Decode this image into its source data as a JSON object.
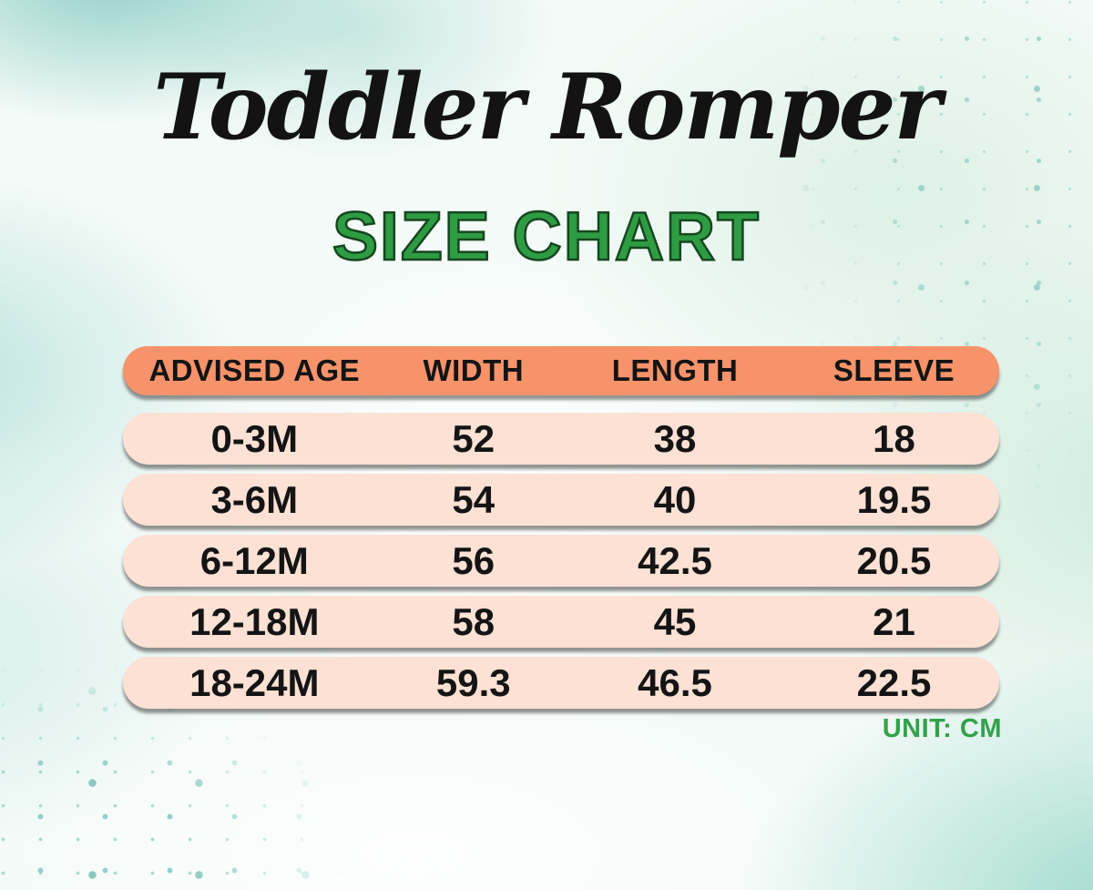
{
  "chart_data": {
    "type": "table",
    "title": "Toddler Romper",
    "subtitle": "SIZE CHART",
    "unit_label": "UNIT: CM",
    "columns": [
      "ADVISED AGE",
      "WIDTH",
      "LENGTH",
      "SLEEVE"
    ],
    "rows": [
      [
        "0-3M",
        "52",
        "38",
        "18"
      ],
      [
        "3-6M",
        "54",
        "40",
        "19.5"
      ],
      [
        "6-12M",
        "56",
        "42.5",
        "20.5"
      ],
      [
        "12-18M",
        "58",
        "45",
        "21"
      ],
      [
        "18-24M",
        "59.3",
        "46.5",
        "22.5"
      ]
    ],
    "colors": {
      "header_bg": "#f6936a",
      "row_bg": "#fce1d4",
      "accent_green": "#2e9c43",
      "text": "#141414",
      "background_teal": "#a7d8d2"
    },
    "layout_hints": {
      "legend": "none",
      "grid": "off",
      "style": "rounded pill rows on watercolor background"
    }
  }
}
